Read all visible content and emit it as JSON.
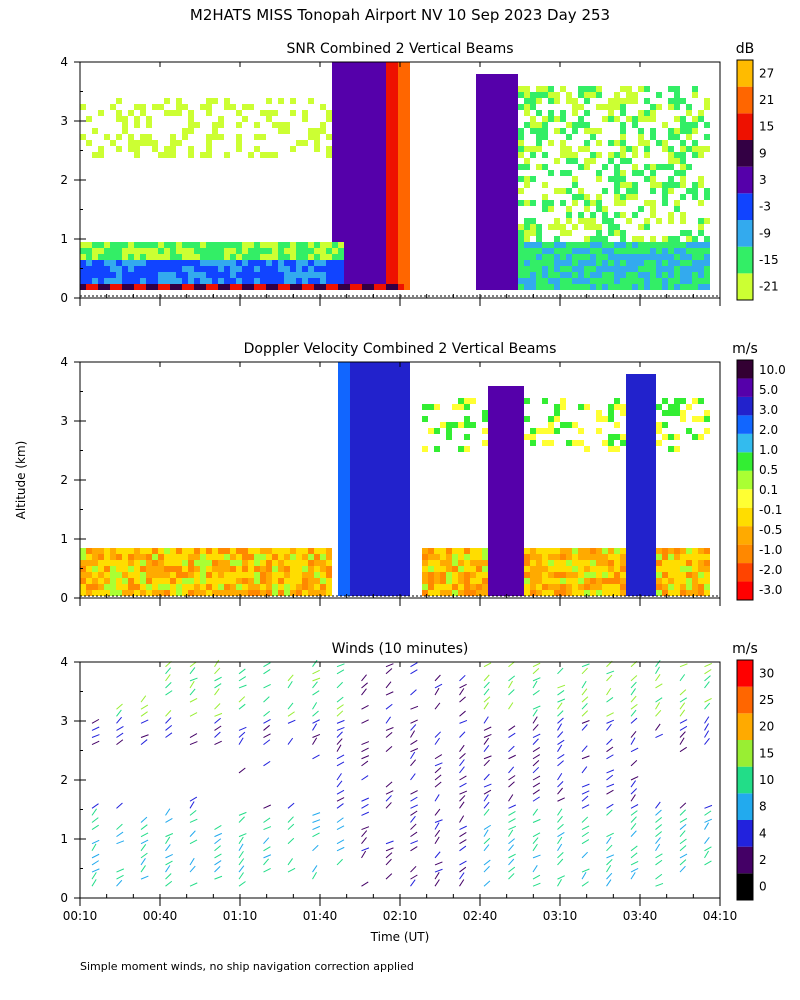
{
  "figure": {
    "title": "M2HATS MISS Tonopah Airport NV  10 Sep 2023 Day 253",
    "ylabel": "Altitude (km)",
    "xlabel": "Time (UT)",
    "footnote": "Simple moment winds, no ship navigation correction applied"
  },
  "colors": {
    "snr_scale": [
      "#ccff33",
      "#33ee66",
      "#33aaee",
      "#1144ff",
      "#5500aa",
      "#330044",
      "#ee1100",
      "#ff6600",
      "#ffbb00"
    ],
    "vel_scale": [
      "#ff0000",
      "#ff4400",
      "#ff8800",
      "#ffaa00",
      "#ffdd00",
      "#ffff33",
      "#aaff33",
      "#33ee33",
      "#33bbee",
      "#1166ff",
      "#2222cc",
      "#5500aa",
      "#330033"
    ],
    "wind_scale": [
      "#000000",
      "#440066",
      "#2222dd",
      "#22aaee",
      "#22dd88",
      "#99ee33",
      "#ffaa00",
      "#ff6600",
      "#ff0000"
    ]
  },
  "chart_data": [
    {
      "type": "heatmap",
      "title": "SNR Combined 2 Vertical Beams",
      "units": "dB",
      "x_ticks": [
        "00:10",
        "00:40",
        "01:10",
        "01:40",
        "02:10",
        "02:40",
        "03:10",
        "03:40",
        "04:10"
      ],
      "y_ticks": [
        "0",
        "1",
        "2",
        "3",
        "4"
      ],
      "ylim": [
        0,
        4
      ],
      "xlim": [
        "00:10",
        "04:10"
      ],
      "colorbar_labels": [
        "-21",
        "-15",
        "-9",
        "-3",
        "3",
        "9",
        "15",
        "21",
        "27"
      ]
    },
    {
      "type": "heatmap",
      "title": "Doppler Velocity Combined 2 Vertical Beams",
      "units": "m/s",
      "x_ticks": [
        "00:10",
        "00:40",
        "01:10",
        "01:40",
        "02:10",
        "02:40",
        "03:10",
        "03:40",
        "04:10"
      ],
      "y_ticks": [
        "0",
        "1",
        "2",
        "3",
        "4"
      ],
      "ylim": [
        0,
        4
      ],
      "xlim": [
        "00:10",
        "04:10"
      ],
      "colorbar_labels": [
        "-3.0",
        "-2.0",
        "-1.0",
        "-0.5",
        "-0.1",
        "0.1",
        "0.5",
        "1.0",
        "2.0",
        "3.0",
        "5.0",
        "10.0"
      ]
    },
    {
      "type": "scatter",
      "title": "Winds (10 minutes)",
      "units": "m/s",
      "x_ticks": [
        "00:10",
        "00:40",
        "01:10",
        "01:40",
        "02:10",
        "02:40",
        "03:10",
        "03:40",
        "04:10"
      ],
      "y_ticks": [
        "0",
        "1",
        "2",
        "3",
        "4"
      ],
      "ylim": [
        0,
        4
      ],
      "xlim": [
        "00:10",
        "04:10"
      ],
      "colorbar_labels": [
        "0",
        "2",
        "4",
        "8",
        "10",
        "15",
        "20",
        "25",
        "30"
      ]
    }
  ]
}
